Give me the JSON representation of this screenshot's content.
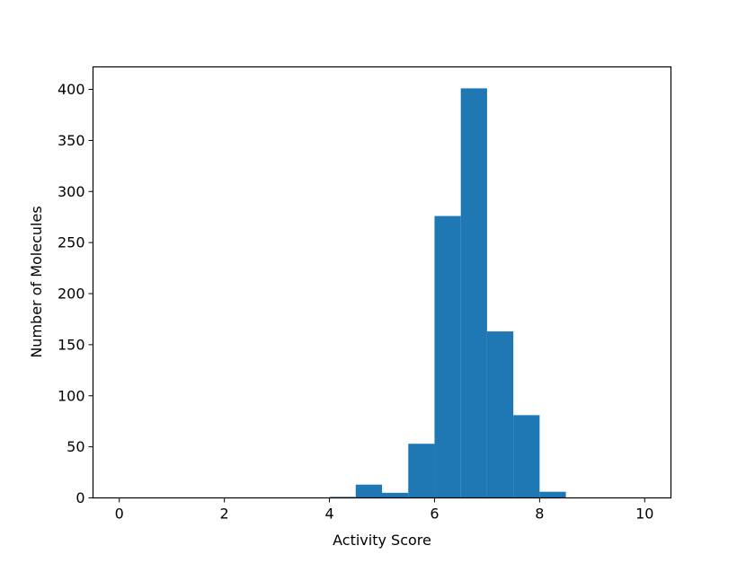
{
  "chart_data": {
    "type": "bar",
    "title": "",
    "xlabel": "Activity Score",
    "ylabel": "Number of Molecules",
    "xlim": [
      -0.5,
      10.5
    ],
    "ylim": [
      0,
      422
    ],
    "xticks": [
      0,
      2,
      4,
      6,
      8,
      10
    ],
    "yticks": [
      0,
      50,
      100,
      150,
      200,
      250,
      300,
      350,
      400
    ],
    "bin_edges": [
      0,
      0.5,
      1,
      1.5,
      2,
      2.5,
      3,
      3.5,
      4,
      4.5,
      5,
      5.5,
      6,
      6.5,
      7,
      7.5,
      8,
      8.5,
      9,
      9.5,
      10
    ],
    "values": [
      0,
      0,
      0,
      0,
      0,
      0,
      0,
      0,
      1,
      13,
      5,
      53,
      276,
      401,
      163,
      81,
      6,
      0,
      0,
      0
    ],
    "color": "#1f77b4",
    "grid": false
  }
}
